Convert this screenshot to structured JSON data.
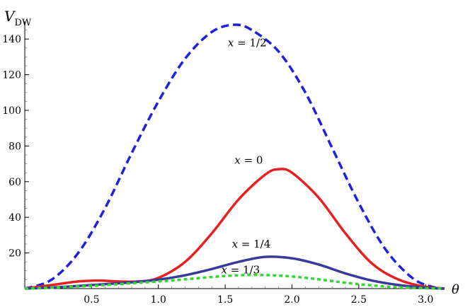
{
  "chart_data": {
    "type": "line",
    "title": "",
    "xlabel": "θ",
    "ylabel": "V",
    "ylabel_sub": "DW",
    "xlim": [
      0,
      3.14159
    ],
    "ylim": [
      0,
      150
    ],
    "xticks": [
      0.5,
      1.0,
      1.5,
      2.0,
      2.5,
      3.0
    ],
    "xtick_labels": [
      "0.5",
      "1.0",
      "1.5",
      "2.0",
      "2.5",
      "3.0"
    ],
    "yticks": [
      20,
      40,
      60,
      80,
      100,
      120,
      140
    ],
    "ytick_labels": [
      "20",
      "40",
      "60",
      "80",
      "100",
      "120",
      "140"
    ],
    "grid": false,
    "series": [
      {
        "name": "x = 1/2",
        "color": "#1f1fe0",
        "style": "dashed",
        "x": [
          0,
          0.2,
          0.4,
          0.6,
          0.8,
          1.0,
          1.2,
          1.4,
          1.57,
          1.7,
          1.9,
          2.1,
          2.3,
          2.5,
          2.7,
          2.9,
          3.05,
          3.14
        ],
        "y": [
          0,
          5,
          20,
          45,
          76,
          105,
          129,
          144,
          148,
          145,
          133,
          110,
          79,
          48,
          22,
          6,
          1,
          0
        ]
      },
      {
        "name": "x = 0",
        "color": "#e62020",
        "style": "solid",
        "x": [
          0,
          0.2,
          0.4,
          0.55,
          0.7,
          0.85,
          1.0,
          1.2,
          1.4,
          1.6,
          1.8,
          1.9,
          2.0,
          2.2,
          2.4,
          2.6,
          2.8,
          3.0,
          3.14
        ],
        "y": [
          0,
          2,
          4,
          4.5,
          4,
          4,
          6,
          15,
          31,
          50,
          64,
          67,
          65,
          51,
          31,
          14,
          5,
          1,
          0
        ]
      },
      {
        "name": "x = 1/4",
        "color": "#3a3a9a",
        "style": "solid",
        "x": [
          0,
          0.2,
          0.4,
          0.6,
          0.8,
          1.0,
          1.2,
          1.4,
          1.6,
          1.8,
          2.0,
          2.2,
          2.4,
          2.6,
          2.8,
          3.0,
          3.14
        ],
        "y": [
          0,
          0.6,
          1.5,
          2.5,
          3.5,
          5,
          7.5,
          11,
          15,
          17.8,
          17,
          13.5,
          8.5,
          4.5,
          2,
          0.5,
          0
        ]
      },
      {
        "name": "x = 1/3",
        "color": "#33d633",
        "style": "dotted",
        "x": [
          0,
          0.2,
          0.4,
          0.6,
          0.8,
          1.0,
          1.2,
          1.4,
          1.6,
          1.8,
          2.0,
          2.2,
          2.4,
          2.6,
          2.8,
          3.0,
          3.14
        ],
        "y": [
          0,
          0.5,
          1.2,
          2,
          3,
          4,
          5.2,
          6.5,
          7.5,
          7.6,
          6.8,
          5.2,
          3.3,
          1.8,
          0.7,
          0.2,
          0
        ]
      }
    ],
    "annotations": [
      {
        "text": "x = 1/2",
        "x": 1.52,
        "y": 136
      },
      {
        "text": "x = 0",
        "x": 1.57,
        "y": 70
      },
      {
        "text": "x = 1/4",
        "x": 1.55,
        "y": 23
      },
      {
        "text": "x = 1/3",
        "x": 1.47,
        "y": 8.5
      }
    ]
  }
}
